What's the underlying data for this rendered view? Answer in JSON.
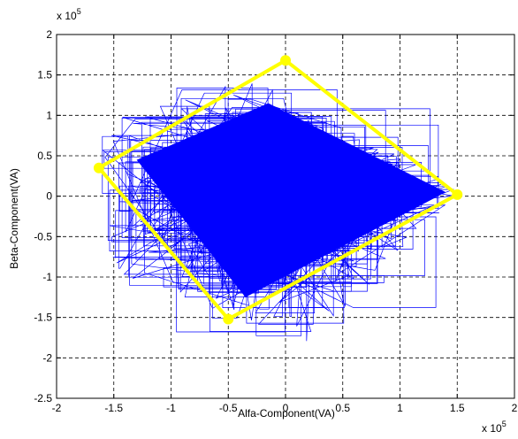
{
  "chart_data": {
    "type": "line",
    "title": "",
    "xlabel": "Alfa-Component(VA)",
    "ylabel": "Beta-Component(VA)",
    "x_multiplier": {
      "base": "x 10",
      "exponent": "5"
    },
    "y_multiplier": {
      "base": "x 10",
      "exponent": "5"
    },
    "xlim": [
      -2,
      2
    ],
    "ylim": [
      -2.5,
      2
    ],
    "xticks": [
      -2,
      -1.5,
      -1,
      -0.5,
      0,
      0.5,
      1,
      1.5,
      2
    ],
    "yticks": [
      -2.5,
      -2,
      -1.5,
      -1,
      -0.5,
      0,
      0.5,
      1,
      1.5,
      2
    ],
    "xtick_labels": [
      "-2",
      "-1.5",
      "-1",
      "-0.5",
      "0",
      "0.5",
      "1",
      "1.5",
      "2"
    ],
    "ytick_labels": [
      "-2.5",
      "-2",
      "-1.5",
      "-1",
      "-0.5",
      "0",
      "0.5",
      "1",
      "1.5",
      "2"
    ],
    "grid": true,
    "grid_style": "dashed",
    "series": [
      {
        "kind": "trajectory",
        "color": "#0000ff",
        "description_of_extent": "dense overlapping trajectory filling a rhombus-shaped region",
        "envelope": [
          [
            -1.62,
            0.9
          ],
          [
            -0.5,
            1.6
          ],
          [
            1.55,
            0.1
          ],
          [
            0.25,
            -2.0
          ],
          [
            -1.55,
            -0.9
          ]
        ],
        "core": [
          [
            -1.3,
            0.45
          ],
          [
            -0.15,
            1.15
          ],
          [
            1.4,
            0.05
          ],
          [
            -0.35,
            -1.25
          ]
        ]
      },
      {
        "kind": "polygon",
        "color": "#ffff00",
        "marker_color": "#ffff00",
        "vertices": [
          [
            0,
            1.68
          ],
          [
            1.5,
            0.02
          ],
          [
            -0.5,
            -1.52
          ],
          [
            -1.63,
            0.35
          ]
        ]
      }
    ]
  }
}
